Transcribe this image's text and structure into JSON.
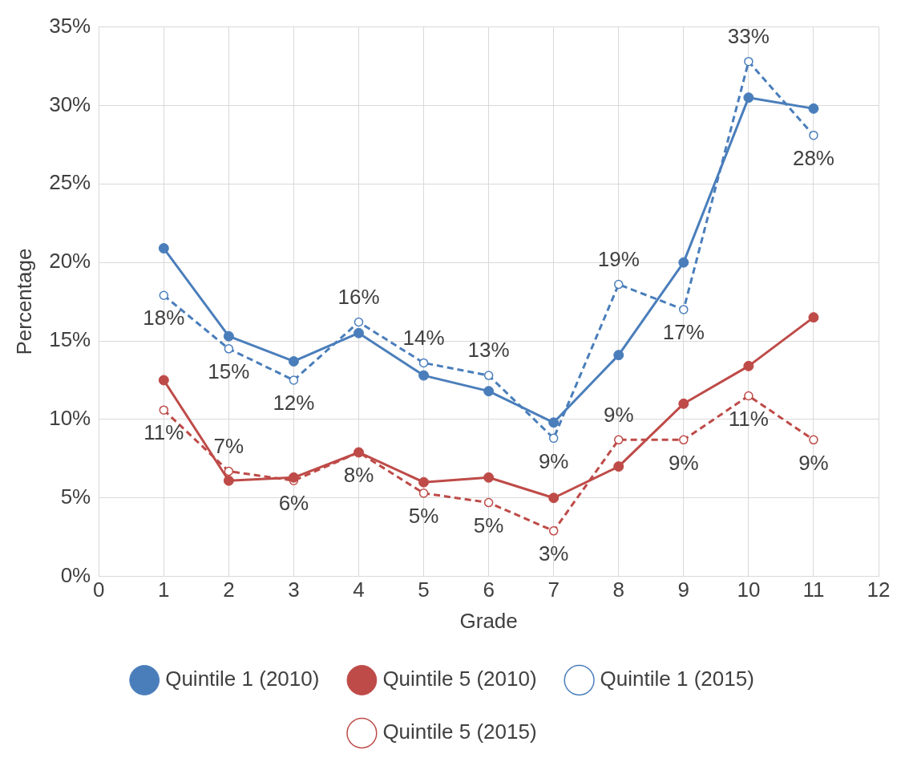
{
  "chart_data": {
    "type": "line",
    "xlabel": "Grade",
    "ylabel": "Percentage",
    "x": [
      1,
      2,
      3,
      4,
      5,
      6,
      7,
      8,
      9,
      10,
      11
    ],
    "xlim": [
      0,
      12
    ],
    "xticks": [
      0,
      1,
      2,
      3,
      4,
      5,
      6,
      7,
      8,
      9,
      10,
      11,
      12
    ],
    "ylim": [
      0,
      35
    ],
    "yticks": [
      {
        "value": 0,
        "label": "0%"
      },
      {
        "value": 5,
        "label": "5%"
      },
      {
        "value": 10,
        "label": "10%"
      },
      {
        "value": 15,
        "label": "15%"
      },
      {
        "value": 20,
        "label": "20%"
      },
      {
        "value": 25,
        "label": "25%"
      },
      {
        "value": 30,
        "label": "30%"
      },
      {
        "value": 35,
        "label": "35%"
      }
    ],
    "grid": true,
    "legend": "bottom",
    "marker": "circle",
    "series": [
      {
        "name": "Quintile 1 (2010)",
        "color": "#4a7ebb",
        "line_style": "solid",
        "values": [
          20.9,
          15.3,
          13.7,
          15.5,
          12.8,
          11.8,
          9.8,
          14.1,
          20.0,
          30.5,
          29.8
        ]
      },
      {
        "name": "Quintile 5 (2010)",
        "color": "#be4b48",
        "line_style": "solid",
        "values": [
          12.5,
          6.1,
          6.3,
          7.9,
          6.0,
          6.3,
          5.0,
          7.0,
          11.0,
          13.4,
          16.5
        ]
      },
      {
        "name": "Quintile 1 (2015)",
        "color": "#4a7ebb",
        "line_style": "dashed",
        "values": [
          17.9,
          14.5,
          12.5,
          16.2,
          13.6,
          12.8,
          8.8,
          18.6,
          17.0,
          32.8,
          28.1
        ],
        "value_labels": [
          "18%",
          "15%",
          "12%",
          "16%",
          "14%",
          "13%",
          "9%",
          "19%",
          "17%",
          "33%",
          "28%"
        ]
      },
      {
        "name": "Quintile 5 (2015)",
        "color": "#be4b48",
        "line_style": "dashed",
        "values": [
          10.6,
          6.7,
          6.1,
          7.9,
          5.3,
          4.7,
          2.9,
          8.7,
          8.7,
          11.5,
          8.7
        ],
        "value_labels": [
          "11%",
          "7%",
          "6%",
          "8%",
          "5%",
          "5%",
          "3%",
          "9%",
          "9%",
          "11%",
          "9%"
        ]
      }
    ]
  }
}
